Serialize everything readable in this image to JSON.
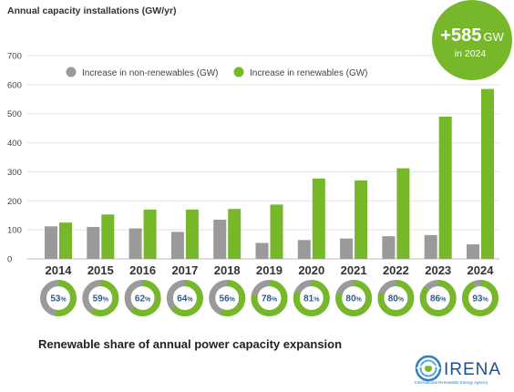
{
  "chart_data": {
    "type": "bar",
    "title": "Annual capacity installations (GW/yr)",
    "categories": [
      "2014",
      "2015",
      "2016",
      "2017",
      "2018",
      "2019",
      "2020",
      "2021",
      "2022",
      "2023",
      "2024"
    ],
    "series": [
      {
        "name": "Increase in non-renewables (GW)",
        "color": "#9a9a9a",
        "values": [
          112,
          110,
          105,
          93,
          135,
          55,
          65,
          70,
          78,
          82,
          50
        ]
      },
      {
        "name": "Increase in renewables (GW)",
        "color": "#76b82a",
        "values": [
          125,
          153,
          170,
          170,
          172,
          187,
          277,
          270,
          312,
          490,
          585
        ]
      }
    ],
    "ylim": [
      0,
      700
    ],
    "yticks": [
      0,
      100,
      200,
      300,
      400,
      500,
      600,
      700
    ],
    "grid": true,
    "legend": "top",
    "renewable_share": [
      53,
      59,
      62,
      64,
      56,
      78,
      81,
      80,
      80,
      86,
      93
    ],
    "share_caption": "Renewable share of annual power capacity expansion",
    "share_unit": "%"
  },
  "badge": {
    "value": "+585",
    "unit": "GW",
    "sub": "in 2024",
    "color": "#76b82a"
  },
  "logo": {
    "name": "IRENA",
    "tagline": "International Renewable Energy Agency"
  }
}
